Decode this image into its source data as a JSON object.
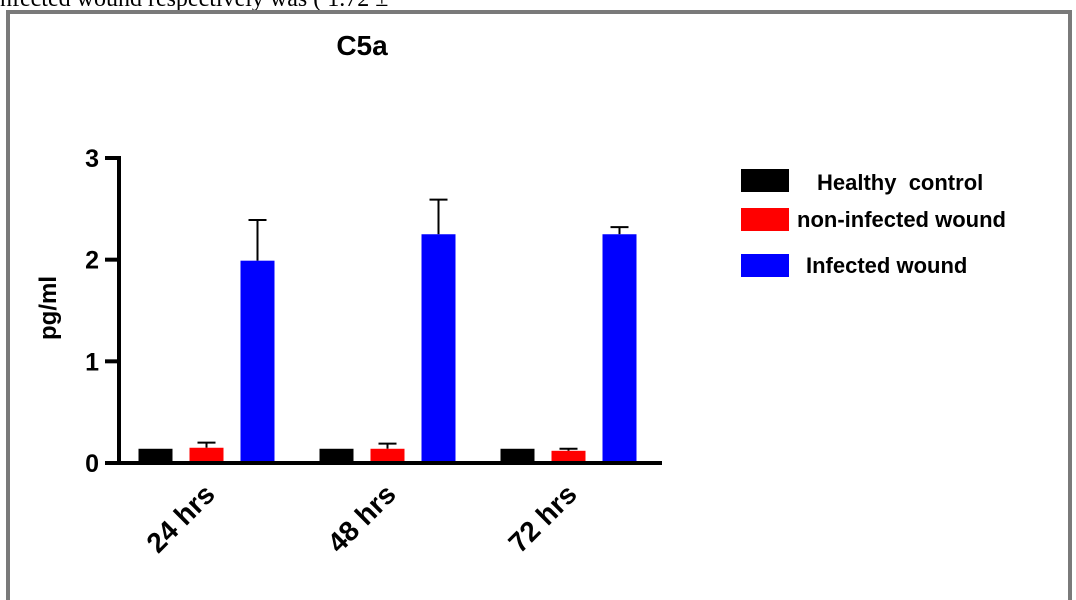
{
  "page_snippet": "nfected wound respectively was ( 1.72 ±",
  "chart_data": {
    "type": "bar",
    "title": "C5a",
    "ylabel": "pg/ml",
    "xlabel": "",
    "categories": [
      "24 hrs",
      "48 hrs",
      "72 hrs"
    ],
    "ylim": [
      0,
      3
    ],
    "yticks": [
      0,
      1,
      2,
      3
    ],
    "series": [
      {
        "name": "Healthy  control",
        "color": "#000000",
        "values": [
          0.14,
          0.14,
          0.14
        ],
        "errors": [
          0.0,
          0.0,
          0.0
        ]
      },
      {
        "name": "non-infected wound",
        "color": "#ff0000",
        "values": [
          0.15,
          0.14,
          0.12
        ],
        "errors": [
          0.05,
          0.05,
          0.02
        ]
      },
      {
        "name": "Infected wound",
        "color": "#0000ff",
        "values": [
          1.99,
          2.25,
          2.25
        ],
        "errors": [
          0.4,
          0.34,
          0.07
        ]
      }
    ],
    "legend_position": "right",
    "grid": false
  }
}
